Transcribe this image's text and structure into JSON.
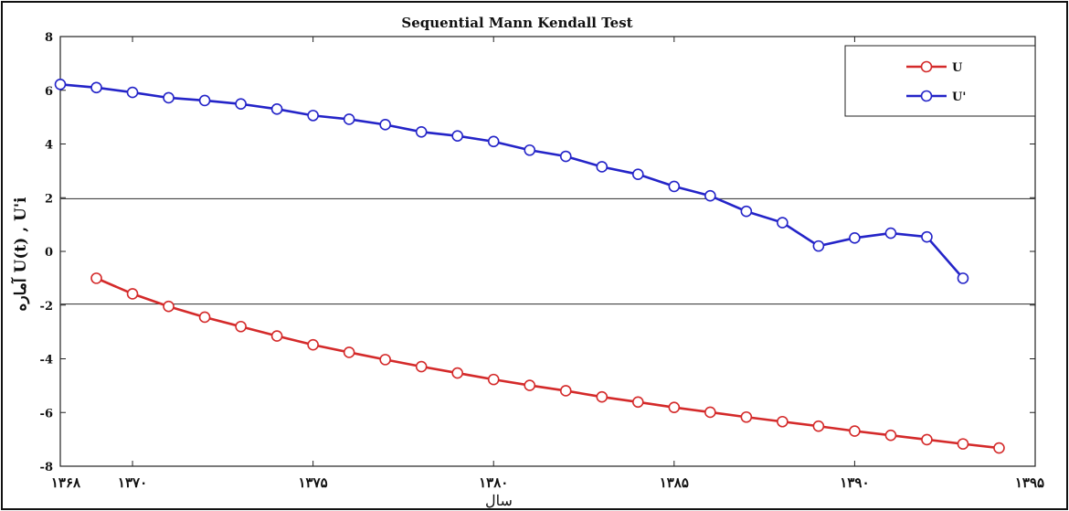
{
  "chart_data": {
    "type": "line",
    "title": "Sequential Mann Kendall Test",
    "xlabel": "سال",
    "ylabel": "آماره U(t) , U'i",
    "xlim": [
      1368,
      1395
    ],
    "ylim": [
      -8,
      8
    ],
    "xticks": [
      1368,
      1370,
      1375,
      1380,
      1385,
      1390,
      1395
    ],
    "xtick_labels": [
      "۱۳۶۸",
      "۱۳۷۰",
      "۱۳۷۵",
      "۱۳۸۰",
      "۱۳۸۵",
      "۱۳۹۰",
      "۱۳۹۵"
    ],
    "yticks": [
      -8,
      -6,
      -4,
      -2,
      0,
      2,
      4,
      6,
      8
    ],
    "ytick_labels": [
      "-8",
      "-6",
      "-4",
      "-2",
      "0",
      "2",
      "4",
      "6",
      "8"
    ],
    "reference_lines": [
      1.96,
      -1.96
    ],
    "grid": false,
    "legend_position": "top-right",
    "series": [
      {
        "name": "U",
        "color": "#d42a2a",
        "x": [
          1369,
          1370,
          1371,
          1372,
          1373,
          1374,
          1375,
          1376,
          1377,
          1378,
          1379,
          1380,
          1381,
          1382,
          1383,
          1384,
          1385,
          1386,
          1387,
          1388,
          1389,
          1390,
          1391,
          1392,
          1393,
          1394
        ],
        "values": [
          -1.0,
          -1.58,
          -2.05,
          -2.45,
          -2.8,
          -3.15,
          -3.48,
          -3.76,
          -4.03,
          -4.29,
          -4.53,
          -4.77,
          -4.99,
          -5.19,
          -5.42,
          -5.61,
          -5.81,
          -5.99,
          -6.17,
          -6.34,
          -6.51,
          -6.69,
          -6.85,
          -7.01,
          -7.17,
          -7.32
        ]
      },
      {
        "name": "U'",
        "color": "#2424c8",
        "x": [
          1368,
          1369,
          1370,
          1371,
          1372,
          1373,
          1374,
          1375,
          1376,
          1377,
          1378,
          1379,
          1380,
          1381,
          1382,
          1383,
          1384,
          1385,
          1386,
          1387,
          1388,
          1389,
          1390,
          1391,
          1392,
          1393
        ],
        "values": [
          6.22,
          6.1,
          5.92,
          5.72,
          5.62,
          5.49,
          5.3,
          5.06,
          4.92,
          4.72,
          4.45,
          4.3,
          4.09,
          3.77,
          3.54,
          3.15,
          2.87,
          2.42,
          2.07,
          1.49,
          1.07,
          0.2,
          0.5,
          0.68,
          0.54,
          -1.0
        ]
      }
    ]
  }
}
